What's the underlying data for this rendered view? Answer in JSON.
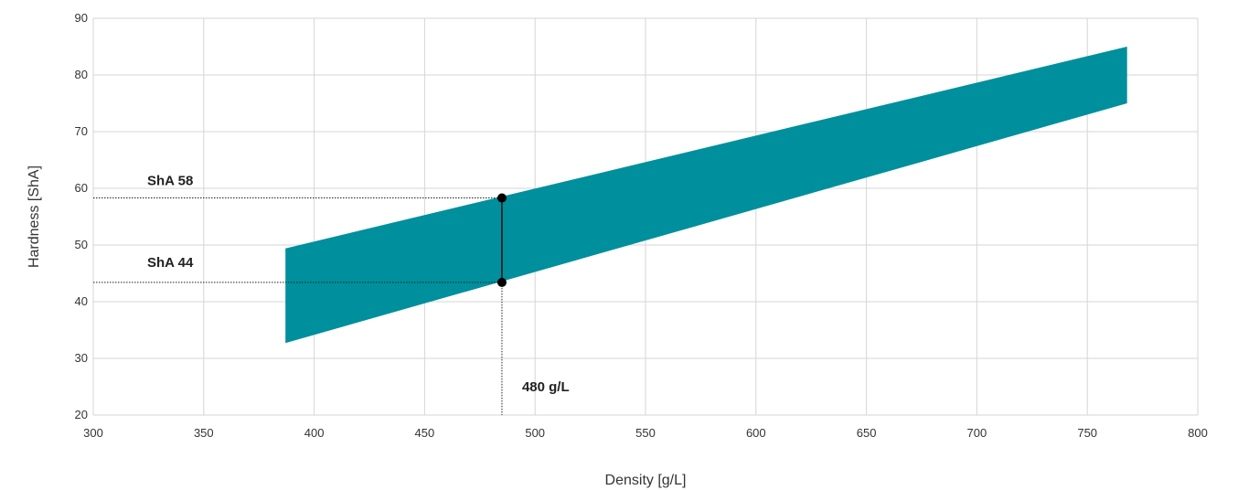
{
  "chart_data": {
    "type": "area",
    "xlabel": "Density [g/L]",
    "ylabel": "Hardness [ShA]",
    "xlim": [
      300,
      800
    ],
    "ylim": [
      20,
      90
    ],
    "x_ticks": [
      "300",
      "350",
      "400",
      "450",
      "500",
      "550",
      "600",
      "650",
      "700",
      "750",
      "800"
    ],
    "y_ticks": [
      "20",
      "30",
      "40",
      "50",
      "60",
      "70",
      "80",
      "90"
    ],
    "grid": true,
    "band_color": "#008f9c",
    "series": [
      {
        "x": [
          387,
          768
        ],
        "lower": [
          32.7,
          75
        ],
        "upper": [
          49.4,
          85
        ]
      }
    ],
    "annotations": [
      {
        "text": "ShA 58",
        "x": 485,
        "y": 58.3
      },
      {
        "text": "ShA 44",
        "x": 485,
        "y": 43.4
      },
      {
        "text": "480 g/L",
        "x": 485
      }
    ]
  }
}
